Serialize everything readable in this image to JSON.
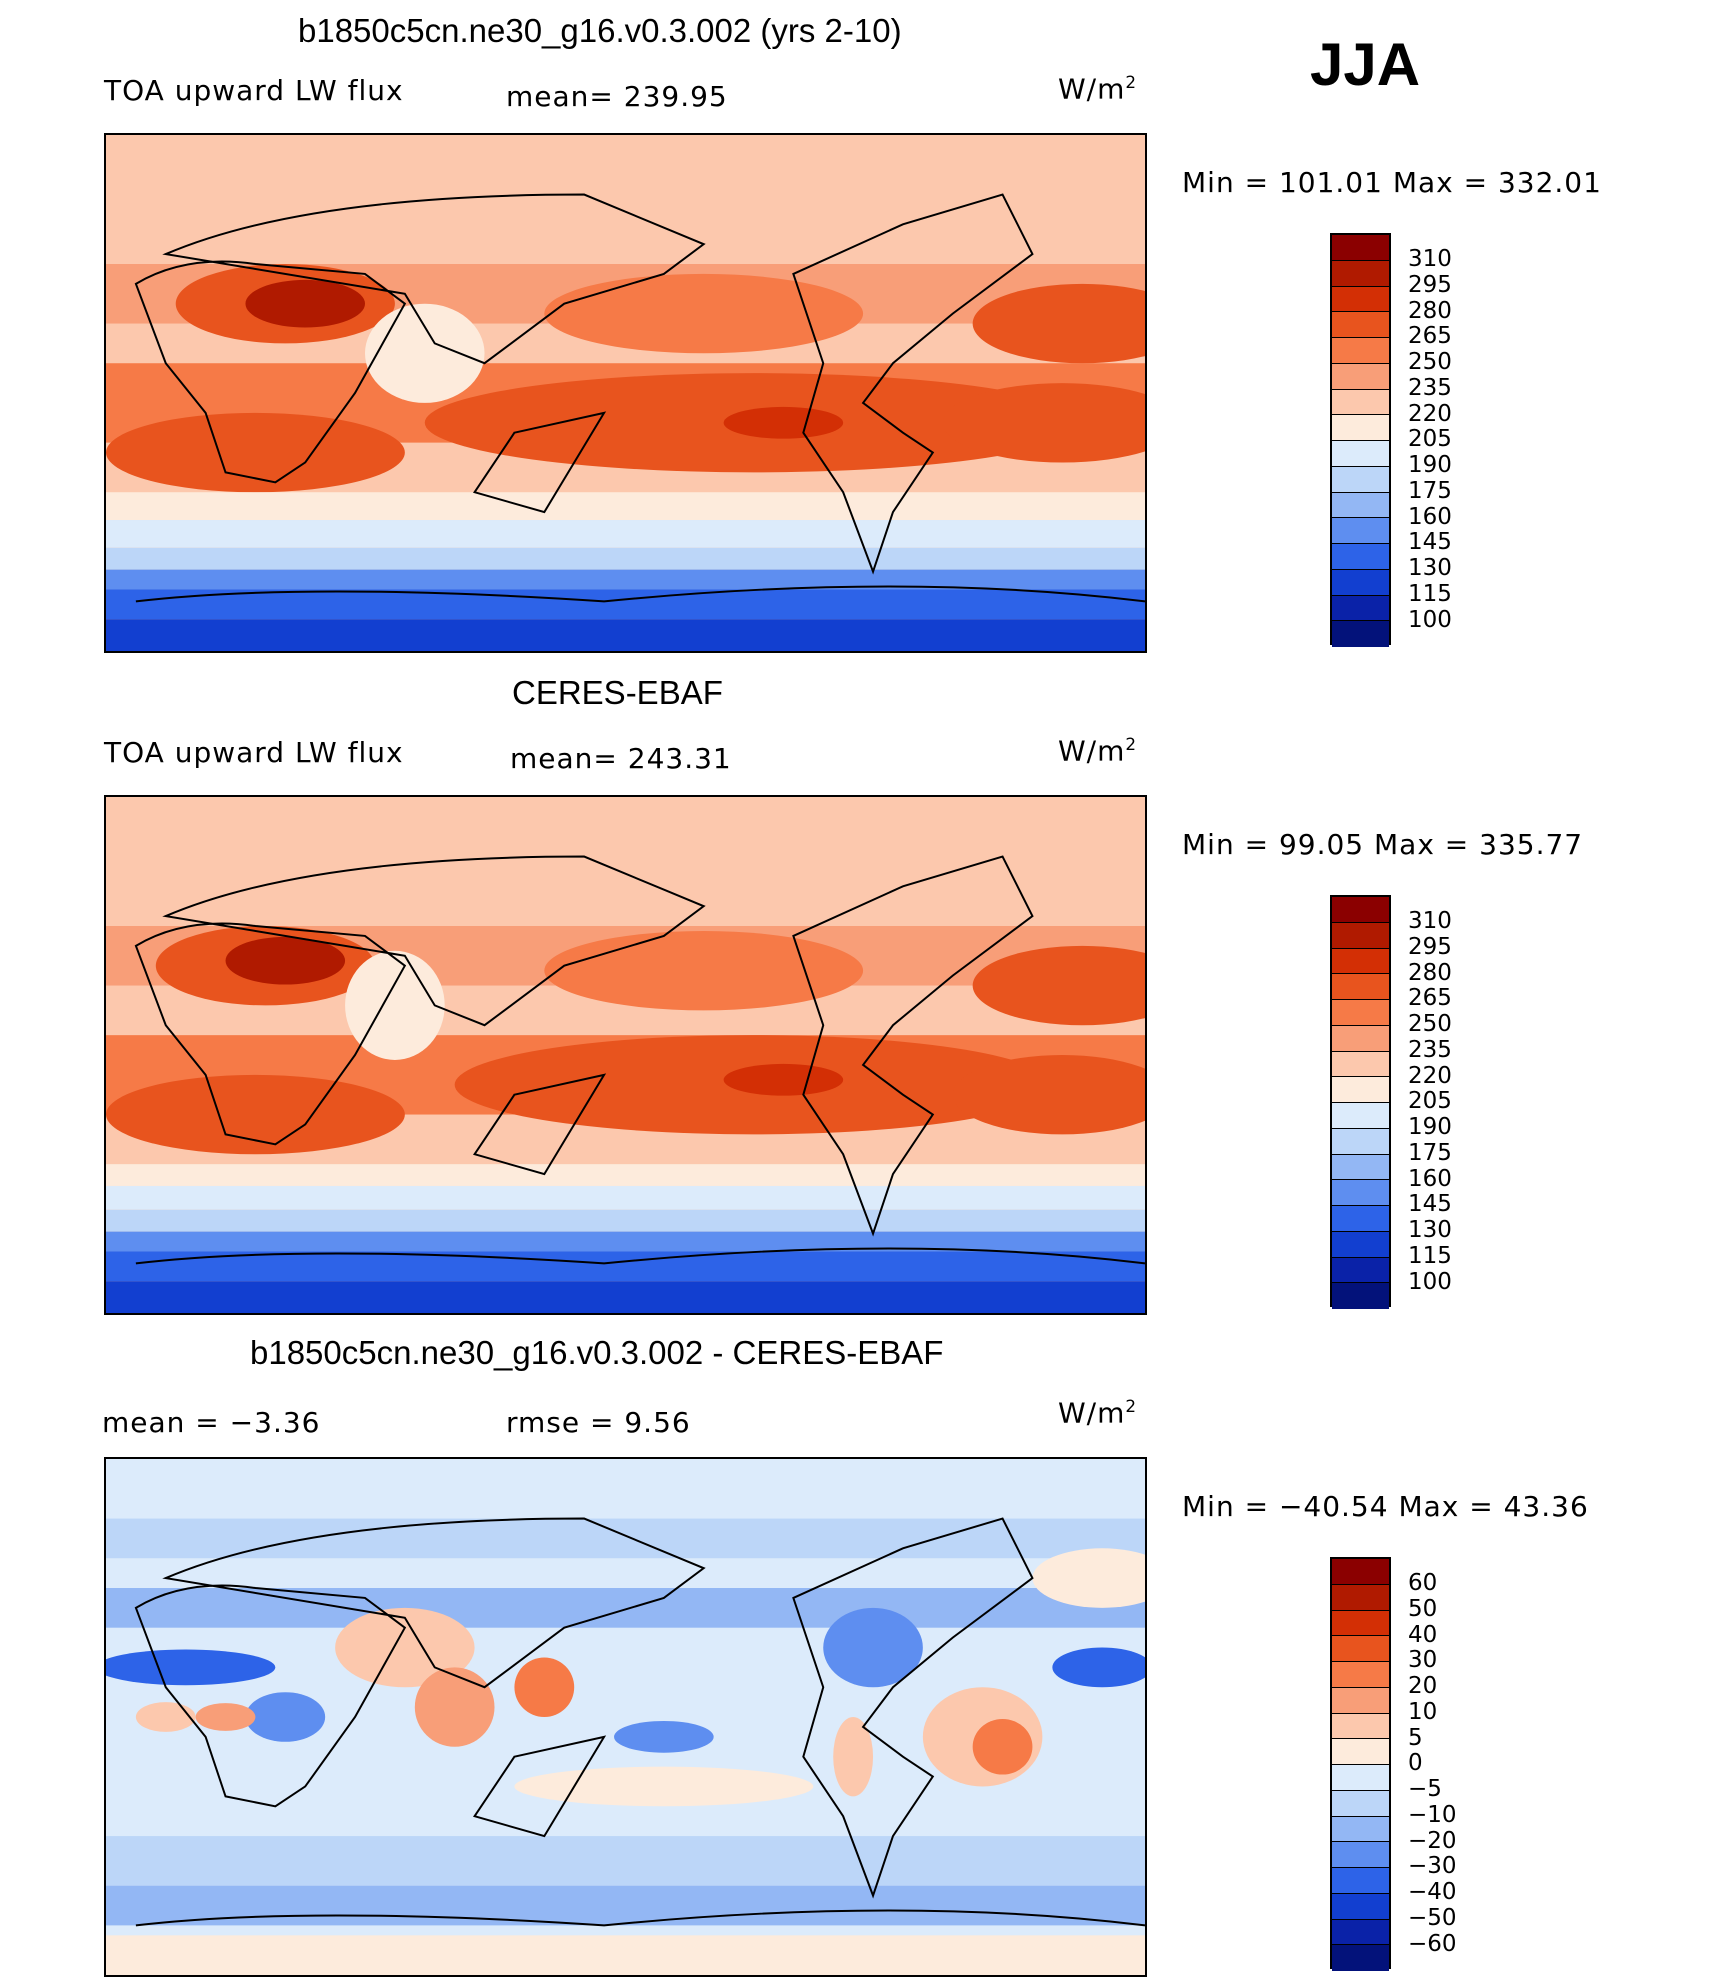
{
  "season": "JJA",
  "units": "W/m",
  "units_sup": "2",
  "panels": [
    {
      "title": "b1850c5cn.ne30_g16.v0.3.002 (yrs 2-10)",
      "left_label": "TOA upward LW flux",
      "center_label": "mean=  239.95",
      "minmax": "Min  =  101.01  Max  =  332.01",
      "levels": [
        "310",
        "295",
        "280",
        "265",
        "250",
        "235",
        "220",
        "205",
        "190",
        "175",
        "160",
        "145",
        "130",
        "115",
        "100"
      ]
    },
    {
      "title": "CERES-EBAF",
      "left_label": "TOA upward LW flux",
      "center_label": "mean=  243.31",
      "minmax": "Min  =    99.05  Max  =  335.77",
      "levels": [
        "310",
        "295",
        "280",
        "265",
        "250",
        "235",
        "220",
        "205",
        "190",
        "175",
        "160",
        "145",
        "130",
        "115",
        "100"
      ]
    },
    {
      "title": "b1850c5cn.ne30_g16.v0.3.002 - CERES-EBAF",
      "left_label": "mean  =    −3.36",
      "center_label": "rmse  =     9.56",
      "minmax": "Min  =  −40.54  Max  =    43.36",
      "levels": [
        "60",
        "50",
        "40",
        "30",
        "20",
        "10",
        "5",
        "0",
        "−5",
        "−10",
        "−20",
        "−30",
        "−40",
        "−50",
        "−60"
      ]
    }
  ],
  "colors": {
    "abs_scale": [
      "#8b0000",
      "#b01a00",
      "#d32f05",
      "#e8541e",
      "#f67a47",
      "#f89e78",
      "#fcc8ad",
      "#fdebdc",
      "#dcebfb",
      "#bcd6f8",
      "#93b7f4",
      "#5e8ef0",
      "#2d63e8",
      "#123fd0",
      "#0a22a8",
      "#03127a"
    ],
    "diff_scale": [
      "#8b0000",
      "#b01a00",
      "#d32f05",
      "#e8541e",
      "#f67a47",
      "#f89e78",
      "#fcc8ad",
      "#fdebdc",
      "#dcebfb",
      "#bcd6f8",
      "#93b7f4",
      "#5e8ef0",
      "#2d63e8",
      "#123fd0",
      "#0a22a8",
      "#03127a"
    ]
  }
}
